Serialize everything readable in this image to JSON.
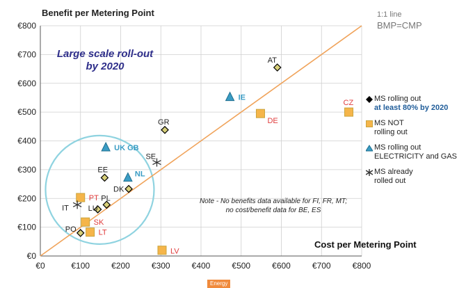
{
  "chart_data": {
    "type": "scatter",
    "title": "Benefit per Metering Point",
    "xlabel": "Cost per Metering Point",
    "xlim": [
      0,
      800
    ],
    "ylim": [
      0,
      800
    ],
    "x_ticks": [
      "€0",
      "€100",
      "€200",
      "€300",
      "€400",
      "€500",
      "€600",
      "€700",
      "€800"
    ],
    "y_ticks": [
      "€0",
      "€100",
      "€200",
      "€300",
      "€400",
      "€500",
      "€600",
      "€700",
      "€800"
    ],
    "grid": true,
    "legend_position": "right",
    "reference_line": {
      "label": "1:1 line",
      "formula": "BMP=CMP",
      "color": "#f0a35a"
    },
    "annotation_highlight": {
      "text_line1": "Large scale roll-out",
      "text_line2": "by 2020",
      "color": "#2e2e8a",
      "circle_color": "#8fd3e0"
    },
    "note_line1": "Note - No benefits data available for FI, FR, MT;",
    "note_line2": "no cost/benefit data for BE, ES",
    "series": [
      {
        "name": "MS rolling out",
        "name_sub": "at least 80% by 2020",
        "marker": "diamond",
        "color": "#000000",
        "fill": "#d8d07a",
        "label_color": "#222222",
        "points": [
          {
            "label": "AT",
            "x": 590,
            "y": 655
          },
          {
            "label": "GR",
            "x": 310,
            "y": 438
          },
          {
            "label": "EE",
            "x": 160,
            "y": 272
          },
          {
            "label": "DK",
            "x": 220,
            "y": 233
          },
          {
            "label": "PL",
            "x": 165,
            "y": 178
          },
          {
            "label": "LU",
            "x": 143,
            "y": 162
          },
          {
            "label": "PO",
            "x": 100,
            "y": 80
          }
        ]
      },
      {
        "name": "MS NOT",
        "name_sub": "rolling out",
        "marker": "square",
        "color": "#caa43c",
        "fill": "#f5b54a",
        "label_color": "#e03c3c",
        "points": [
          {
            "label": "CZ",
            "x": 768,
            "y": 500
          },
          {
            "label": "DE",
            "x": 548,
            "y": 495
          },
          {
            "label": "PT",
            "x": 100,
            "y": 203
          },
          {
            "label": "SK",
            "x": 112,
            "y": 118
          },
          {
            "label": "LT",
            "x": 124,
            "y": 83
          },
          {
            "label": "LV",
            "x": 303,
            "y": 20
          }
        ]
      },
      {
        "name": "MS rolling out",
        "name_sub": "ELECTRICITY and GAS",
        "marker": "triangle",
        "color": "#1f6f8f",
        "fill": "#3a9cc4",
        "label_color": "#3a9cc4",
        "points": [
          {
            "label": "IE",
            "x": 472,
            "y": 552
          },
          {
            "label": "UK GB",
            "x": 163,
            "y": 377
          },
          {
            "label": "NL",
            "x": 218,
            "y": 272
          }
        ]
      },
      {
        "name": "MS already",
        "name_sub": "rolled out",
        "marker": "asterisk",
        "color": "#333333",
        "fill": "#333333",
        "label_color": "#222222",
        "points": [
          {
            "label": "SE",
            "x": 290,
            "y": 325
          },
          {
            "label": "IT",
            "x": 92,
            "y": 178
          }
        ]
      }
    ]
  },
  "footer_tab": "Energy"
}
